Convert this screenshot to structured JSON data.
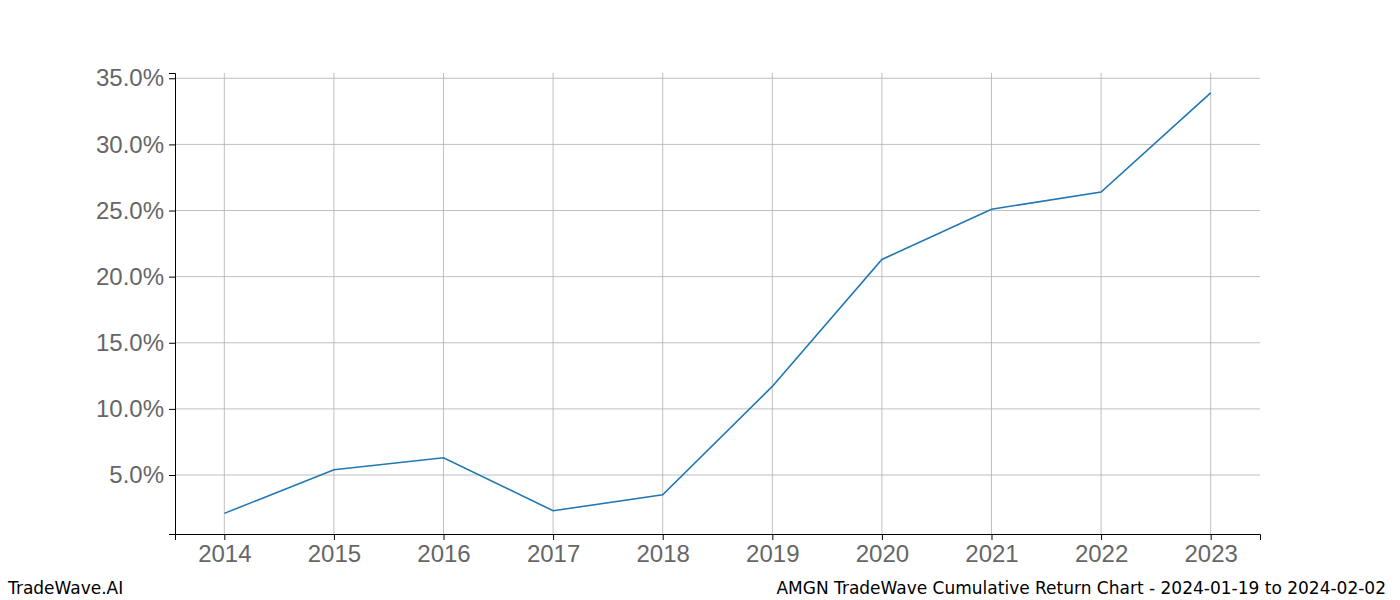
{
  "chart_data": {
    "type": "line",
    "title": "AMGN TradeWave Cumulative Return Chart - 2024-01-19 to 2024-02-02",
    "source": "TradeWave.AI",
    "x": [
      2014,
      2015,
      2016,
      2017,
      2018,
      2019,
      2020,
      2021,
      2022,
      2023
    ],
    "values": [
      2.1,
      5.4,
      6.3,
      2.3,
      3.5,
      11.7,
      21.3,
      25.1,
      26.4,
      33.9
    ],
    "color": "#1f77b4",
    "xlim": [
      2013.55,
      2023.45
    ],
    "xticks": [
      2014,
      2015,
      2016,
      2017,
      2018,
      2019,
      2020,
      2021,
      2022,
      2023
    ],
    "ylim": [
      0.54,
      35.4
    ],
    "yticks": [
      {
        "value": 5,
        "label": "5.0%"
      },
      {
        "value": 10,
        "label": "10.0%"
      },
      {
        "value": 15,
        "label": "15.0%"
      },
      {
        "value": 20,
        "label": "20.0%"
      },
      {
        "value": 25,
        "label": "25.0%"
      },
      {
        "value": 30,
        "label": "30.0%"
      },
      {
        "value": 35,
        "label": "35.0%"
      }
    ],
    "grid": true
  }
}
